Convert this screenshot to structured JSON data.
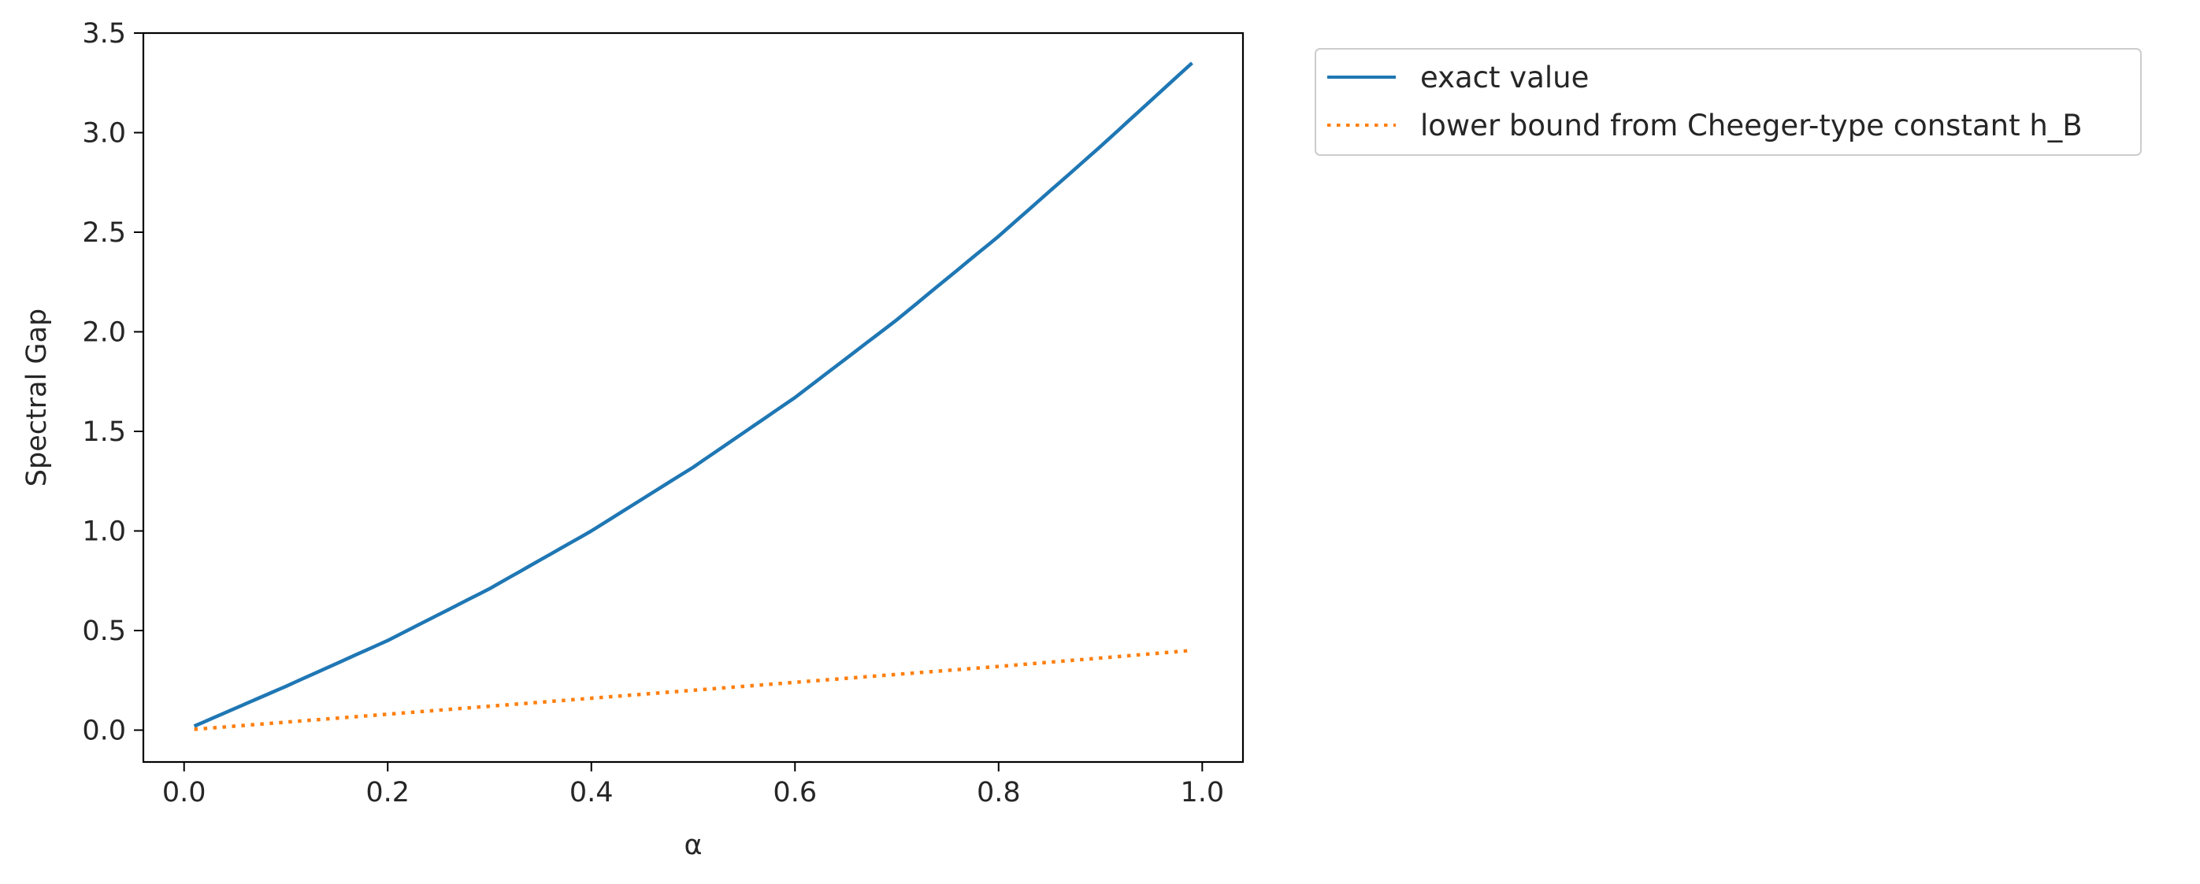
{
  "chart_data": {
    "type": "line",
    "title": "",
    "xlabel": "α",
    "ylabel": "Spectral Gap",
    "xlim": [
      -0.04,
      1.04
    ],
    "ylim": [
      -0.16,
      3.5
    ],
    "xticks": [
      0.0,
      0.2,
      0.4,
      0.6,
      0.8,
      1.0
    ],
    "xtick_labels": [
      "0.0",
      "0.2",
      "0.4",
      "0.6",
      "0.8",
      "1.0"
    ],
    "yticks": [
      0.0,
      0.5,
      1.0,
      1.5,
      2.0,
      2.5,
      3.0,
      3.5
    ],
    "ytick_labels": [
      "0.0",
      "0.5",
      "1.0",
      "1.5",
      "2.0",
      "2.5",
      "3.0",
      "3.5"
    ],
    "grid": false,
    "legend_position": "outside-upper-right",
    "series": [
      {
        "name": "exact value",
        "style": "solid",
        "color": "#1f77b4",
        "x": [
          0.01,
          0.1,
          0.2,
          0.3,
          0.4,
          0.5,
          0.6,
          0.7,
          0.8,
          0.9,
          0.99
        ],
        "y": [
          0.02,
          0.22,
          0.45,
          0.71,
          1.0,
          1.32,
          1.67,
          2.06,
          2.48,
          2.93,
          3.35
        ]
      },
      {
        "name": "lower bound from Cheeger-type constant h_B",
        "style": "dotted",
        "color": "#ff7f0e",
        "x": [
          0.01,
          0.2,
          0.4,
          0.6,
          0.8,
          0.99
        ],
        "y": [
          0.004,
          0.08,
          0.16,
          0.24,
          0.32,
          0.4
        ]
      }
    ]
  }
}
